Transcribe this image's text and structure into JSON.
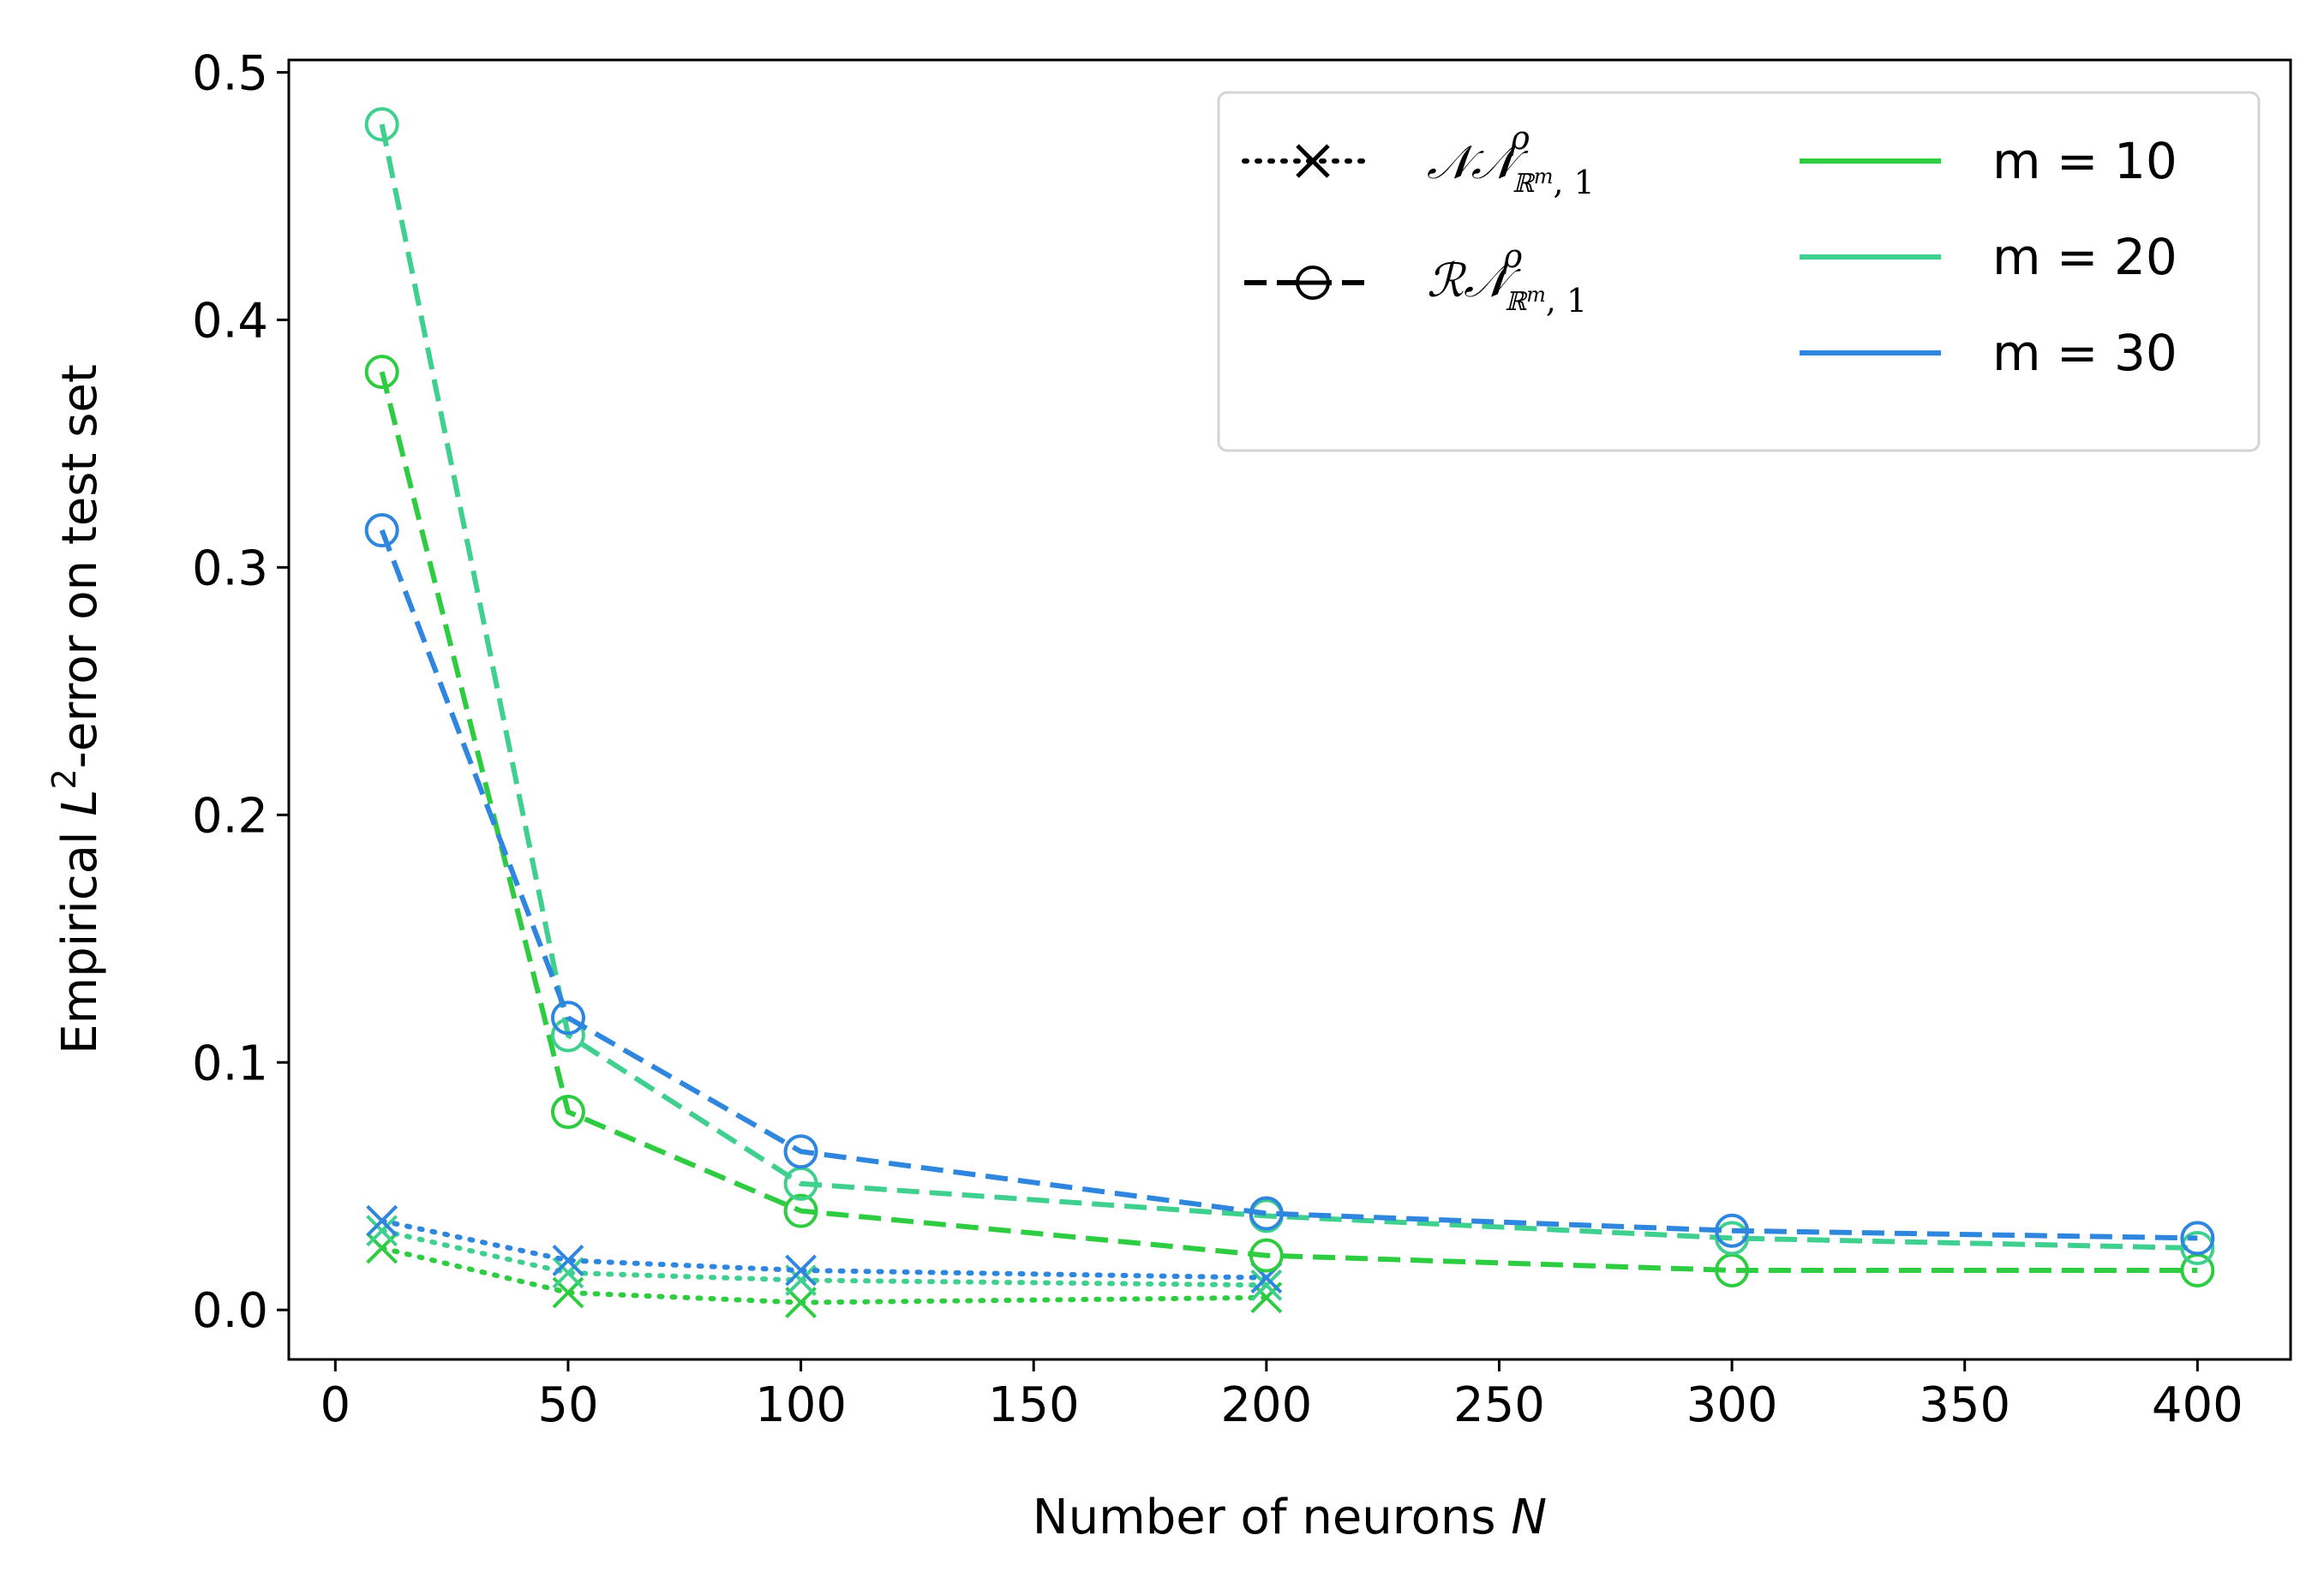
{
  "chart_data": {
    "type": "line",
    "xlabel_prefix": "Number of neurons ",
    "xlabel_var": "N",
    "ylabel_prefix": "Empirical ",
    "ylabel_var": "L",
    "ylabel_sup": "2",
    "ylabel_suffix": "-error on test set",
    "xlim": [
      -10,
      420
    ],
    "ylim": [
      -0.02,
      0.505
    ],
    "xticks": [
      0,
      50,
      100,
      150,
      200,
      250,
      300,
      350,
      400
    ],
    "xtick_labels": [
      "0",
      "50",
      "100",
      "150",
      "200",
      "250",
      "300",
      "350",
      "400"
    ],
    "yticks": [
      0.0,
      0.1,
      0.2,
      0.3,
      0.4,
      0.5
    ],
    "ytick_labels": [
      "0.0",
      "0.1",
      "0.2",
      "0.3",
      "0.4",
      "0.5"
    ],
    "grid": false,
    "legend_position": "upper-right",
    "colors": {
      "m10": "#2ecc40",
      "m20": "#3fcf8e",
      "m30": "#2e86de"
    },
    "legend": {
      "styles": [
        {
          "key": "nn",
          "main": "𝒩𝒩",
          "sup": "ρ",
          "sub_space": "ℝ",
          "sub_exp": "m",
          "sub_tail": ", 1"
        },
        {
          "key": "rn",
          "main": "ℛ𝒩",
          "sup": "ρ",
          "sub_space": "ℝ",
          "sub_exp": "m",
          "sub_tail": ", 1"
        }
      ],
      "colors": [
        {
          "label": "m = 10",
          "color": "#2ecc40"
        },
        {
          "label": "m = 20",
          "color": "#3fcf8e"
        },
        {
          "label": "m = 30",
          "color": "#2e86de"
        }
      ]
    },
    "series": [
      {
        "group": "RN",
        "m": "m = 10",
        "color": "#2ecc40",
        "style": "dashed",
        "marker": "circle",
        "x": [
          10,
          50,
          100,
          200,
          300,
          400
        ],
        "y": [
          0.379,
          0.08,
          0.04,
          0.022,
          0.016,
          0.016
        ]
      },
      {
        "group": "RN",
        "m": "m = 20",
        "color": "#3fcf8e",
        "style": "dashed",
        "marker": "circle",
        "x": [
          10,
          50,
          100,
          200,
          300,
          400
        ],
        "y": [
          0.479,
          0.111,
          0.051,
          0.038,
          0.029,
          0.025
        ]
      },
      {
        "group": "RN",
        "m": "m = 30",
        "color": "#2e86de",
        "style": "dashed",
        "marker": "circle",
        "x": [
          10,
          50,
          100,
          200,
          300,
          400
        ],
        "y": [
          0.315,
          0.118,
          0.064,
          0.039,
          0.032,
          0.029
        ]
      },
      {
        "group": "NN",
        "m": "m = 10",
        "color": "#2ecc40",
        "style": "dotted",
        "marker": "x",
        "x": [
          10,
          50,
          100,
          200
        ],
        "y": [
          0.025,
          0.007,
          0.003,
          0.005
        ]
      },
      {
        "group": "NN",
        "m": "m = 20",
        "color": "#3fcf8e",
        "style": "dotted",
        "marker": "x",
        "x": [
          10,
          50,
          100,
          200
        ],
        "y": [
          0.032,
          0.015,
          0.012,
          0.01
        ]
      },
      {
        "group": "NN",
        "m": "m = 30",
        "color": "#2e86de",
        "style": "dotted",
        "marker": "x",
        "x": [
          10,
          50,
          100,
          200
        ],
        "y": [
          0.036,
          0.02,
          0.016,
          0.013
        ]
      }
    ]
  }
}
